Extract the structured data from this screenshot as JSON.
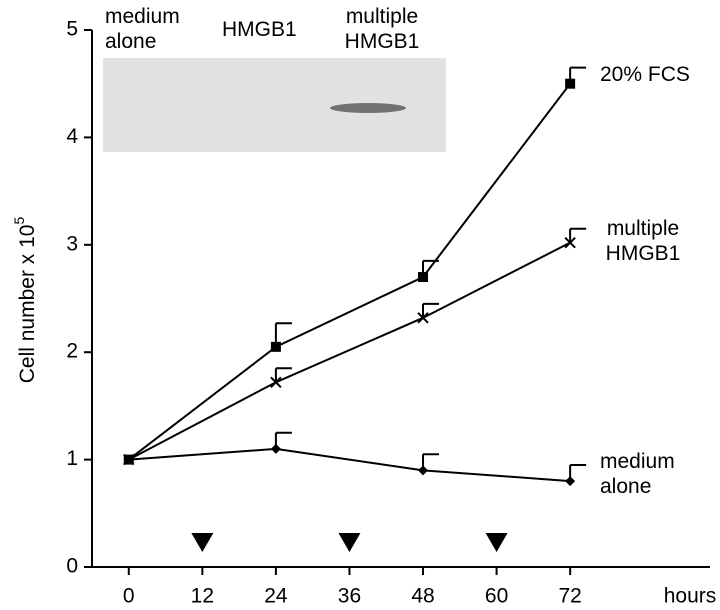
{
  "chart_data": {
    "type": "line",
    "y_label": "Cell number x 10",
    "y_label_exp": "5",
    "x_label": "hours",
    "xlim": [
      -6,
      94
    ],
    "xticks": [
      0,
      12,
      24,
      36,
      48,
      60,
      72
    ],
    "ylim": [
      0,
      5
    ],
    "yticks": [
      0,
      1,
      2,
      3,
      4,
      5
    ],
    "x": [
      0,
      24,
      48,
      72
    ],
    "series": [
      {
        "name": "20% FCS",
        "marker": "square",
        "color": "#000000",
        "values": [
          1.0,
          2.05,
          2.7,
          4.5
        ],
        "errors": [
          null,
          0.22,
          0.15,
          0.15
        ]
      },
      {
        "name": "multiple HMGB1",
        "marker": "x",
        "color": "#000000",
        "values": [
          1.0,
          1.72,
          2.32,
          3.02
        ],
        "errors": [
          null,
          0.13,
          0.13,
          0.13
        ]
      },
      {
        "name": "medium alone",
        "marker": "diamond",
        "color": "#000000",
        "values": [
          1.0,
          1.1,
          0.9,
          0.8
        ],
        "errors": [
          null,
          0.15,
          0.15,
          0.15
        ]
      }
    ],
    "treatment_times": [
      12,
      36,
      60
    ],
    "inset_lanes": [
      "medium alone",
      "HMGB1",
      "multiple HMGB1"
    ]
  }
}
